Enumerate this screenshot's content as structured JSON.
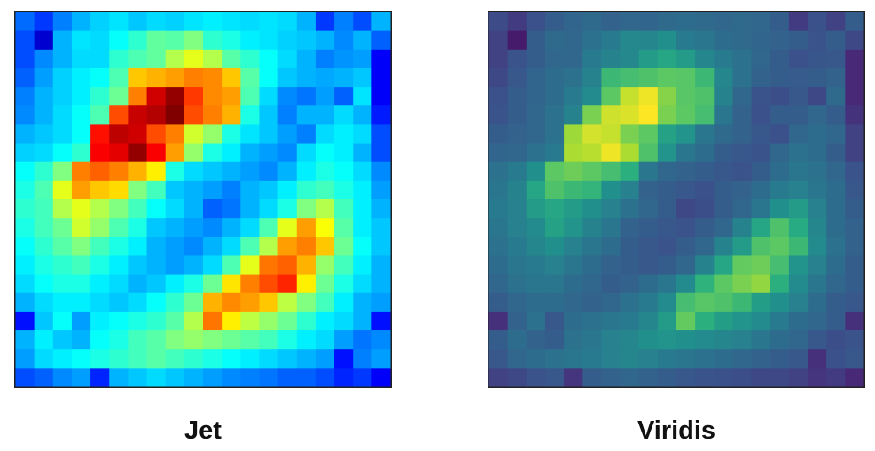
{
  "chart_data": [
    {
      "type": "heatmap",
      "title": "Jet",
      "colormap": "jet",
      "grid": false,
      "rows": 20,
      "cols": 20,
      "vmin": 0,
      "vmax": 1,
      "values": [
        [
          0.23,
          0.18,
          0.25,
          0.3,
          0.33,
          0.35,
          0.32,
          0.34,
          0.33,
          0.35,
          0.36,
          0.35,
          0.34,
          0.35,
          0.34,
          0.3,
          0.18,
          0.25,
          0.2,
          0.3
        ],
        [
          0.2,
          0.08,
          0.3,
          0.35,
          0.34,
          0.38,
          0.42,
          0.47,
          0.46,
          0.5,
          0.42,
          0.4,
          0.36,
          0.35,
          0.33,
          0.32,
          0.3,
          0.26,
          0.3,
          0.22
        ],
        [
          0.2,
          0.26,
          0.3,
          0.34,
          0.34,
          0.42,
          0.45,
          0.47,
          0.55,
          0.6,
          0.55,
          0.46,
          0.42,
          0.38,
          0.34,
          0.3,
          0.25,
          0.27,
          0.28,
          0.12
        ],
        [
          0.22,
          0.28,
          0.33,
          0.36,
          0.38,
          0.45,
          0.68,
          0.7,
          0.72,
          0.75,
          0.74,
          0.68,
          0.46,
          0.38,
          0.32,
          0.3,
          0.29,
          0.3,
          0.32,
          0.12
        ],
        [
          0.25,
          0.3,
          0.33,
          0.36,
          0.42,
          0.48,
          0.75,
          0.92,
          0.98,
          0.82,
          0.74,
          0.72,
          0.45,
          0.34,
          0.26,
          0.24,
          0.28,
          0.22,
          0.35,
          0.12
        ],
        [
          0.26,
          0.3,
          0.34,
          0.38,
          0.45,
          0.8,
          0.93,
          0.95,
          1.0,
          0.8,
          0.75,
          0.7,
          0.4,
          0.32,
          0.25,
          0.3,
          0.3,
          0.34,
          0.3,
          0.15
        ],
        [
          0.3,
          0.32,
          0.34,
          0.38,
          0.86,
          0.94,
          0.92,
          0.8,
          0.75,
          0.58,
          0.52,
          0.4,
          0.35,
          0.32,
          0.28,
          0.25,
          0.34,
          0.36,
          0.34,
          0.2
        ],
        [
          0.33,
          0.34,
          0.38,
          0.42,
          0.88,
          0.9,
          0.98,
          0.88,
          0.72,
          0.52,
          0.4,
          0.36,
          0.3,
          0.28,
          0.26,
          0.34,
          0.38,
          0.36,
          0.3,
          0.2
        ],
        [
          0.38,
          0.42,
          0.5,
          0.75,
          0.78,
          0.75,
          0.7,
          0.64,
          0.4,
          0.34,
          0.32,
          0.3,
          0.28,
          0.26,
          0.3,
          0.36,
          0.4,
          0.38,
          0.34,
          0.26
        ],
        [
          0.4,
          0.45,
          0.6,
          0.72,
          0.68,
          0.66,
          0.5,
          0.44,
          0.32,
          0.3,
          0.28,
          0.25,
          0.3,
          0.32,
          0.36,
          0.42,
          0.44,
          0.4,
          0.36,
          0.28
        ],
        [
          0.42,
          0.44,
          0.55,
          0.6,
          0.55,
          0.5,
          0.44,
          0.38,
          0.34,
          0.3,
          0.22,
          0.24,
          0.3,
          0.34,
          0.4,
          0.5,
          0.55,
          0.44,
          0.36,
          0.3
        ],
        [
          0.4,
          0.44,
          0.48,
          0.58,
          0.52,
          0.45,
          0.4,
          0.32,
          0.3,
          0.28,
          0.26,
          0.3,
          0.34,
          0.45,
          0.6,
          0.72,
          0.62,
          0.46,
          0.36,
          0.32
        ],
        [
          0.38,
          0.42,
          0.46,
          0.5,
          0.44,
          0.4,
          0.36,
          0.3,
          0.28,
          0.26,
          0.3,
          0.34,
          0.45,
          0.55,
          0.72,
          0.75,
          0.68,
          0.48,
          0.38,
          0.32
        ],
        [
          0.36,
          0.4,
          0.42,
          0.44,
          0.4,
          0.36,
          0.32,
          0.3,
          0.28,
          0.3,
          0.34,
          0.45,
          0.6,
          0.76,
          0.78,
          0.7,
          0.52,
          0.44,
          0.36,
          0.3
        ],
        [
          0.34,
          0.38,
          0.4,
          0.4,
          0.36,
          0.34,
          0.3,
          0.32,
          0.36,
          0.4,
          0.48,
          0.65,
          0.75,
          0.8,
          0.84,
          0.64,
          0.48,
          0.4,
          0.34,
          0.3
        ],
        [
          0.3,
          0.34,
          0.36,
          0.36,
          0.34,
          0.32,
          0.34,
          0.38,
          0.42,
          0.48,
          0.7,
          0.74,
          0.72,
          0.68,
          0.56,
          0.5,
          0.44,
          0.36,
          0.3,
          0.28
        ],
        [
          0.14,
          0.32,
          0.38,
          0.28,
          0.36,
          0.38,
          0.4,
          0.42,
          0.46,
          0.55,
          0.76,
          0.64,
          0.56,
          0.52,
          0.48,
          0.42,
          0.36,
          0.34,
          0.3,
          0.14
        ],
        [
          0.3,
          0.36,
          0.32,
          0.3,
          0.38,
          0.4,
          0.44,
          0.46,
          0.5,
          0.52,
          0.5,
          0.48,
          0.46,
          0.44,
          0.4,
          0.36,
          0.34,
          0.28,
          0.24,
          0.26
        ],
        [
          0.28,
          0.34,
          0.36,
          0.38,
          0.4,
          0.42,
          0.44,
          0.46,
          0.44,
          0.42,
          0.4,
          0.38,
          0.36,
          0.34,
          0.32,
          0.3,
          0.28,
          0.14,
          0.25,
          0.28
        ],
        [
          0.2,
          0.22,
          0.26,
          0.28,
          0.16,
          0.3,
          0.32,
          0.34,
          0.32,
          0.3,
          0.28,
          0.26,
          0.25,
          0.24,
          0.22,
          0.22,
          0.2,
          0.16,
          0.18,
          0.12
        ]
      ]
    },
    {
      "type": "heatmap",
      "title": "Viridis",
      "colormap": "viridis",
      "grid": false,
      "rows": 20,
      "cols": 20,
      "vmin": 0,
      "vmax": 1,
      "values": [
        [
          0.23,
          0.18,
          0.25,
          0.3,
          0.33,
          0.35,
          0.32,
          0.34,
          0.33,
          0.35,
          0.36,
          0.35,
          0.34,
          0.35,
          0.34,
          0.3,
          0.18,
          0.25,
          0.2,
          0.3
        ],
        [
          0.2,
          0.08,
          0.3,
          0.35,
          0.34,
          0.38,
          0.42,
          0.47,
          0.46,
          0.5,
          0.42,
          0.4,
          0.36,
          0.35,
          0.33,
          0.32,
          0.3,
          0.26,
          0.3,
          0.22
        ],
        [
          0.2,
          0.26,
          0.3,
          0.34,
          0.34,
          0.42,
          0.45,
          0.47,
          0.55,
          0.6,
          0.55,
          0.46,
          0.42,
          0.38,
          0.34,
          0.3,
          0.25,
          0.27,
          0.28,
          0.12
        ],
        [
          0.22,
          0.28,
          0.33,
          0.36,
          0.38,
          0.45,
          0.68,
          0.7,
          0.72,
          0.75,
          0.74,
          0.68,
          0.46,
          0.38,
          0.32,
          0.3,
          0.29,
          0.3,
          0.32,
          0.12
        ],
        [
          0.25,
          0.3,
          0.33,
          0.36,
          0.42,
          0.48,
          0.75,
          0.92,
          0.98,
          0.82,
          0.74,
          0.72,
          0.45,
          0.34,
          0.26,
          0.24,
          0.28,
          0.22,
          0.35,
          0.12
        ],
        [
          0.26,
          0.3,
          0.34,
          0.38,
          0.45,
          0.8,
          0.93,
          0.95,
          1.0,
          0.8,
          0.75,
          0.7,
          0.4,
          0.32,
          0.25,
          0.3,
          0.3,
          0.34,
          0.3,
          0.15
        ],
        [
          0.3,
          0.32,
          0.34,
          0.38,
          0.86,
          0.94,
          0.92,
          0.8,
          0.75,
          0.58,
          0.52,
          0.4,
          0.35,
          0.32,
          0.28,
          0.25,
          0.34,
          0.36,
          0.34,
          0.2
        ],
        [
          0.33,
          0.34,
          0.38,
          0.42,
          0.88,
          0.9,
          0.98,
          0.88,
          0.72,
          0.52,
          0.4,
          0.36,
          0.3,
          0.28,
          0.26,
          0.34,
          0.38,
          0.36,
          0.3,
          0.2
        ],
        [
          0.38,
          0.42,
          0.5,
          0.75,
          0.78,
          0.75,
          0.7,
          0.64,
          0.4,
          0.34,
          0.32,
          0.3,
          0.28,
          0.26,
          0.3,
          0.36,
          0.4,
          0.38,
          0.34,
          0.26
        ],
        [
          0.4,
          0.45,
          0.6,
          0.72,
          0.68,
          0.66,
          0.5,
          0.44,
          0.32,
          0.3,
          0.28,
          0.25,
          0.3,
          0.32,
          0.36,
          0.42,
          0.44,
          0.4,
          0.36,
          0.28
        ],
        [
          0.42,
          0.44,
          0.55,
          0.6,
          0.55,
          0.5,
          0.44,
          0.38,
          0.34,
          0.3,
          0.22,
          0.24,
          0.3,
          0.34,
          0.4,
          0.5,
          0.55,
          0.44,
          0.36,
          0.3
        ],
        [
          0.4,
          0.44,
          0.48,
          0.58,
          0.52,
          0.45,
          0.4,
          0.32,
          0.3,
          0.28,
          0.26,
          0.3,
          0.34,
          0.45,
          0.6,
          0.72,
          0.62,
          0.46,
          0.36,
          0.32
        ],
        [
          0.38,
          0.42,
          0.46,
          0.5,
          0.44,
          0.4,
          0.36,
          0.3,
          0.28,
          0.26,
          0.3,
          0.34,
          0.45,
          0.55,
          0.72,
          0.75,
          0.68,
          0.48,
          0.38,
          0.32
        ],
        [
          0.36,
          0.4,
          0.42,
          0.44,
          0.4,
          0.36,
          0.32,
          0.3,
          0.28,
          0.3,
          0.34,
          0.45,
          0.6,
          0.76,
          0.78,
          0.7,
          0.52,
          0.44,
          0.36,
          0.3
        ],
        [
          0.34,
          0.38,
          0.4,
          0.4,
          0.36,
          0.34,
          0.3,
          0.32,
          0.36,
          0.4,
          0.48,
          0.65,
          0.75,
          0.8,
          0.84,
          0.64,
          0.48,
          0.4,
          0.34,
          0.3
        ],
        [
          0.3,
          0.34,
          0.36,
          0.36,
          0.34,
          0.32,
          0.34,
          0.38,
          0.42,
          0.48,
          0.7,
          0.74,
          0.72,
          0.68,
          0.56,
          0.5,
          0.44,
          0.36,
          0.3,
          0.28
        ],
        [
          0.14,
          0.32,
          0.38,
          0.28,
          0.36,
          0.38,
          0.4,
          0.42,
          0.46,
          0.55,
          0.76,
          0.64,
          0.56,
          0.52,
          0.48,
          0.42,
          0.36,
          0.34,
          0.3,
          0.14
        ],
        [
          0.3,
          0.36,
          0.32,
          0.3,
          0.38,
          0.4,
          0.44,
          0.46,
          0.5,
          0.52,
          0.5,
          0.48,
          0.46,
          0.44,
          0.4,
          0.36,
          0.34,
          0.28,
          0.24,
          0.26
        ],
        [
          0.28,
          0.34,
          0.36,
          0.38,
          0.4,
          0.42,
          0.44,
          0.46,
          0.44,
          0.42,
          0.4,
          0.38,
          0.36,
          0.34,
          0.32,
          0.3,
          0.28,
          0.14,
          0.25,
          0.28
        ],
        [
          0.2,
          0.22,
          0.26,
          0.28,
          0.16,
          0.3,
          0.32,
          0.34,
          0.32,
          0.3,
          0.28,
          0.26,
          0.25,
          0.24,
          0.22,
          0.22,
          0.2,
          0.16,
          0.18,
          0.12
        ]
      ]
    }
  ]
}
